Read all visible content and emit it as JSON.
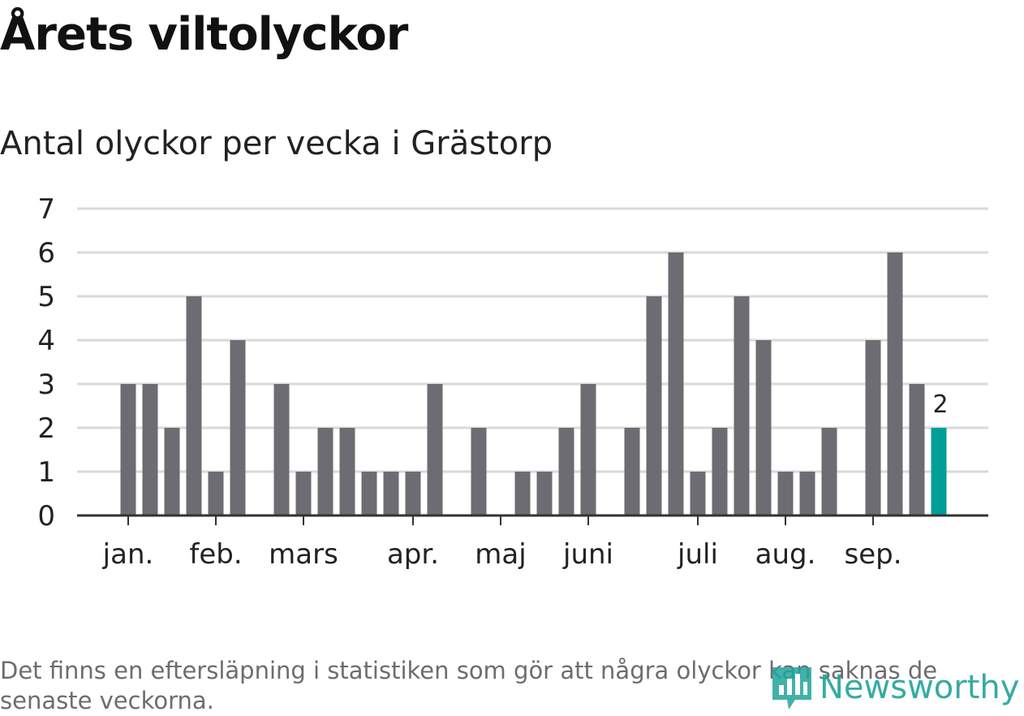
{
  "title": "Årets viltolyckor",
  "subtitle": "Antal olyckor per vecka i Grästorp",
  "footnote": "Det finns en eftersläpning i statistiken som gör att några olyckor kan saknas de senaste veckorna.",
  "logo_text": "Newsworthy",
  "colors": {
    "bar": "#6d6c72",
    "highlight": "#009f96",
    "grid": "#d9d9d9",
    "axis": "#333333",
    "logo": "#21a39a"
  },
  "chart_data": {
    "type": "bar",
    "title": "Antal olyckor per vecka i Grästorp",
    "xlabel": "",
    "ylabel": "",
    "ylim": [
      0,
      7
    ],
    "y_ticks": [
      0,
      1,
      2,
      3,
      4,
      5,
      6,
      7
    ],
    "grid": true,
    "x_tick_labels": [
      {
        "label": "jan.",
        "week": 1
      },
      {
        "label": "feb.",
        "week": 5
      },
      {
        "label": "mars",
        "week": 9
      },
      {
        "label": "apr.",
        "week": 14
      },
      {
        "label": "maj",
        "week": 18
      },
      {
        "label": "juni",
        "week": 22
      },
      {
        "label": "juli",
        "week": 27
      },
      {
        "label": "aug.",
        "week": 31
      },
      {
        "label": "sep.",
        "week": 35
      }
    ],
    "weeks": [
      1,
      2,
      3,
      4,
      5,
      6,
      7,
      8,
      9,
      10,
      11,
      12,
      13,
      14,
      15,
      16,
      17,
      18,
      19,
      20,
      21,
      22,
      23,
      24,
      25,
      26,
      27,
      28,
      29,
      30,
      31,
      32,
      33,
      34,
      35,
      36,
      37,
      38,
      39
    ],
    "values": [
      3,
      3,
      2,
      5,
      1,
      4,
      0,
      3,
      1,
      2,
      2,
      1,
      1,
      1,
      3,
      0,
      2,
      0,
      1,
      1,
      2,
      3,
      0,
      2,
      5,
      6,
      1,
      2,
      5,
      4,
      1,
      1,
      2,
      0,
      4,
      6,
      3,
      2,
      0
    ],
    "highlight_index": 37,
    "highlight_label": "2"
  }
}
